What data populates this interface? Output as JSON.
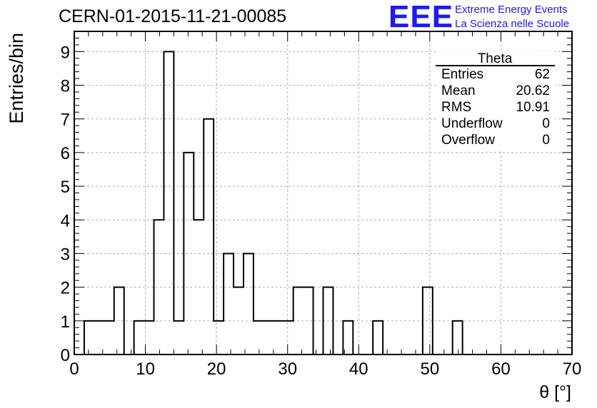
{
  "title": "CERN-01-2015-11-21-00085",
  "logo": {
    "mark": "EEE",
    "line1": "Extreme Energy Events",
    "line2": "La Scienza nelle Scuole",
    "color": "#1a1aff"
  },
  "stats_box": {
    "name": "Theta",
    "rows": [
      {
        "label": "Entries",
        "value": "62"
      },
      {
        "label": "Mean",
        "value": "20.62"
      },
      {
        "label": "RMS",
        "value": "10.91"
      },
      {
        "label": "Underflow",
        "value": "0"
      },
      {
        "label": "Overflow",
        "value": "0"
      }
    ]
  },
  "chart_data": {
    "type": "histogram",
    "title": "CERN-01-2015-11-21-00085",
    "xlabel": "θ [°]",
    "ylabel": "Entries/bin",
    "xlim": [
      0,
      70
    ],
    "ylim": [
      0,
      9.6
    ],
    "x_ticks": [
      0,
      10,
      20,
      30,
      40,
      50,
      60,
      70
    ],
    "y_ticks": [
      0,
      1,
      2,
      3,
      4,
      5,
      6,
      7,
      8,
      9
    ],
    "grid": true,
    "bin_edges": [
      1.4,
      2.8,
      4.2,
      5.6,
      7.0,
      8.4,
      9.8,
      11.2,
      12.6,
      14.0,
      15.4,
      16.8,
      18.2,
      19.6,
      21.0,
      22.4,
      23.8,
      25.2,
      26.6,
      28.0,
      29.4,
      30.8,
      32.2,
      33.6,
      35.0,
      36.4,
      37.8,
      39.2,
      40.6,
      42.0,
      43.4,
      44.8,
      46.2,
      47.6,
      49.0,
      50.4,
      51.8,
      53.2,
      54.6
    ],
    "counts": [
      1,
      1,
      1,
      2,
      0,
      1,
      1,
      4,
      9,
      1,
      6,
      4,
      7,
      1,
      3,
      2,
      3,
      1,
      1,
      1,
      1,
      2,
      2,
      0,
      2,
      0,
      1,
      0,
      0,
      1,
      0,
      0,
      0,
      0,
      2,
      0,
      0,
      1
    ],
    "line_color": "#000000",
    "grid_color": "#b0b0b0"
  }
}
